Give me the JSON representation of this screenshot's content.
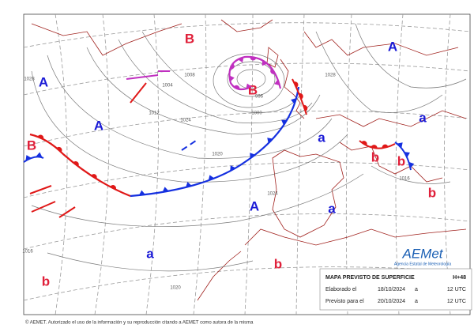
{
  "map": {
    "pressure_centers": [
      {
        "label": "A",
        "color": "#1a1ad6"
      },
      {
        "label": "A",
        "color": "#1a1ad6"
      },
      {
        "label": "B",
        "color": "#e0203a"
      },
      {
        "label": "B",
        "color": "#e0203a"
      },
      {
        "label": "B",
        "color": "#e0203a"
      },
      {
        "label": "A",
        "color": "#1a1ad6"
      },
      {
        "label": "a",
        "color": "#1a1ad6"
      },
      {
        "label": "a",
        "color": "#1a1ad6"
      },
      {
        "label": "b",
        "color": "#e0203a"
      },
      {
        "label": "b",
        "color": "#e0203a"
      },
      {
        "label": "b",
        "color": "#e0203a"
      },
      {
        "label": "A",
        "color": "#1a1ad6"
      },
      {
        "label": "a",
        "color": "#1a1ad6"
      },
      {
        "label": "a",
        "color": "#1a1ad6"
      },
      {
        "label": "b",
        "color": "#e0203a"
      },
      {
        "label": "b",
        "color": "#e0203a"
      }
    ],
    "isobar_labels": [
      "1028",
      "1008",
      "1004",
      "1012",
      "996",
      "1000",
      "1024",
      "1020",
      "1024",
      "1016",
      "1020",
      "1028",
      "1016"
    ],
    "info_box": {
      "title": "MAPA PREVISTO DE SUPERFICIE",
      "forecast_hour": "H+48",
      "rows": [
        [
          "Elaborado el",
          "18/10/2024",
          "a",
          "12 UTC"
        ],
        [
          "Previsto para el",
          "20/10/2024",
          "a",
          "12 UTC"
        ]
      ]
    },
    "logo": {
      "name": "AEMet",
      "subtitle": "Agencia Estatal de Meteorología"
    },
    "footer": "© AEMET. Autorizado el uso de la información y su reproducción citando a AEMET como autora de la misma"
  }
}
